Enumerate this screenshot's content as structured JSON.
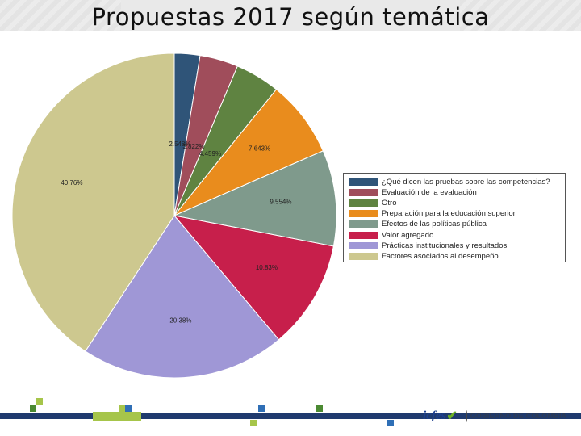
{
  "page": {
    "title": "Propuestas 2017 según temática"
  },
  "chart_data": {
    "type": "pie",
    "title": "",
    "legend_position": "right",
    "slices": [
      {
        "name": "¿Qué dicen las pruebas sobre las competencias?",
        "value": 2.548,
        "label": "2.548%",
        "color": "#2f5478"
      },
      {
        "name": "Evaluación de la evaluación",
        "value": 3.822,
        "label": "3.822%",
        "color": "#a04d5b"
      },
      {
        "name": "Otro",
        "value": 4.459,
        "label": "4.459%",
        "color": "#5f8341"
      },
      {
        "name": "Preparación para la educación superior",
        "value": 7.643,
        "label": "7.643%",
        "color": "#e98c1d"
      },
      {
        "name": "Efectos de las políticas pública",
        "value": 9.554,
        "label": "9.554%",
        "color": "#7f9a8c"
      },
      {
        "name": "Valor agregado",
        "value": 10.83,
        "label": "10.83%",
        "color": "#c71f4b"
      },
      {
        "name": "Prácticas institucionales y resultados",
        "value": 20.38,
        "label": "20.38%",
        "color": "#9f97d6"
      },
      {
        "name": "Factores asociados al desempeño",
        "value": 40.76,
        "label": "40.76%",
        "color": "#cdc88f"
      }
    ]
  },
  "footer": {
    "logo_text": "icfes",
    "government_label": "GOBIERNO DE COLOMBIA",
    "band_colors": [
      "#1f3a6e",
      "#a6c54a",
      "#2f6fb6",
      "#4b8a32"
    ]
  }
}
